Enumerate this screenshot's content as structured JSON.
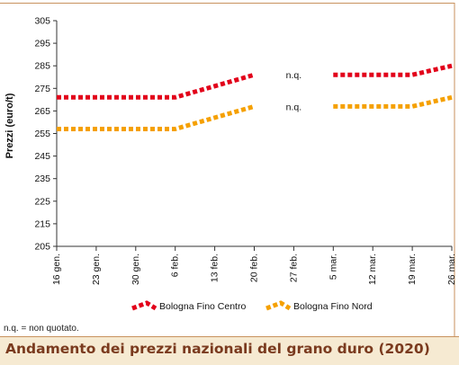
{
  "chart_data": {
    "type": "line",
    "title": "",
    "xlabel": "",
    "ylabel": "Prezzi (euro/t)",
    "ylim": [
      205,
      305
    ],
    "yticks": [
      205,
      215,
      225,
      235,
      245,
      255,
      265,
      275,
      285,
      295,
      305
    ],
    "categories": [
      "16 gen.",
      "23 gen.",
      "30 gen.",
      "6 feb.",
      "13 feb.",
      "20 feb.",
      "27 feb.",
      "5 mar.",
      "12 mar.",
      "19 mar.",
      "26 mar."
    ],
    "series": [
      {
        "name": "Bologna Fino Centro",
        "color": "#e2001a",
        "values": [
          271,
          271,
          271,
          271,
          276,
          281,
          null,
          281,
          281,
          281,
          285
        ]
      },
      {
        "name": "Bologna Fino Nord",
        "color": "#f5a000",
        "values": [
          257,
          257,
          257,
          257,
          262,
          267,
          null,
          267,
          267,
          267,
          271
        ]
      }
    ],
    "annotations": [
      {
        "text": "n.q.",
        "x": "27 feb.",
        "y": 281
      },
      {
        "text": "n.q.",
        "x": "27 feb.",
        "y": 267
      }
    ],
    "grid": false,
    "legend_position": "bottom"
  },
  "footnote": "n.q. = non quotato.",
  "title_bar": {
    "text": "Andamento dei prezzi nazionali del grano duro (2020)",
    "background": "#f6ead2",
    "text_color": "#7a3a1e"
  },
  "colors": {
    "axis": "#333333",
    "frame": "#c8925e"
  }
}
